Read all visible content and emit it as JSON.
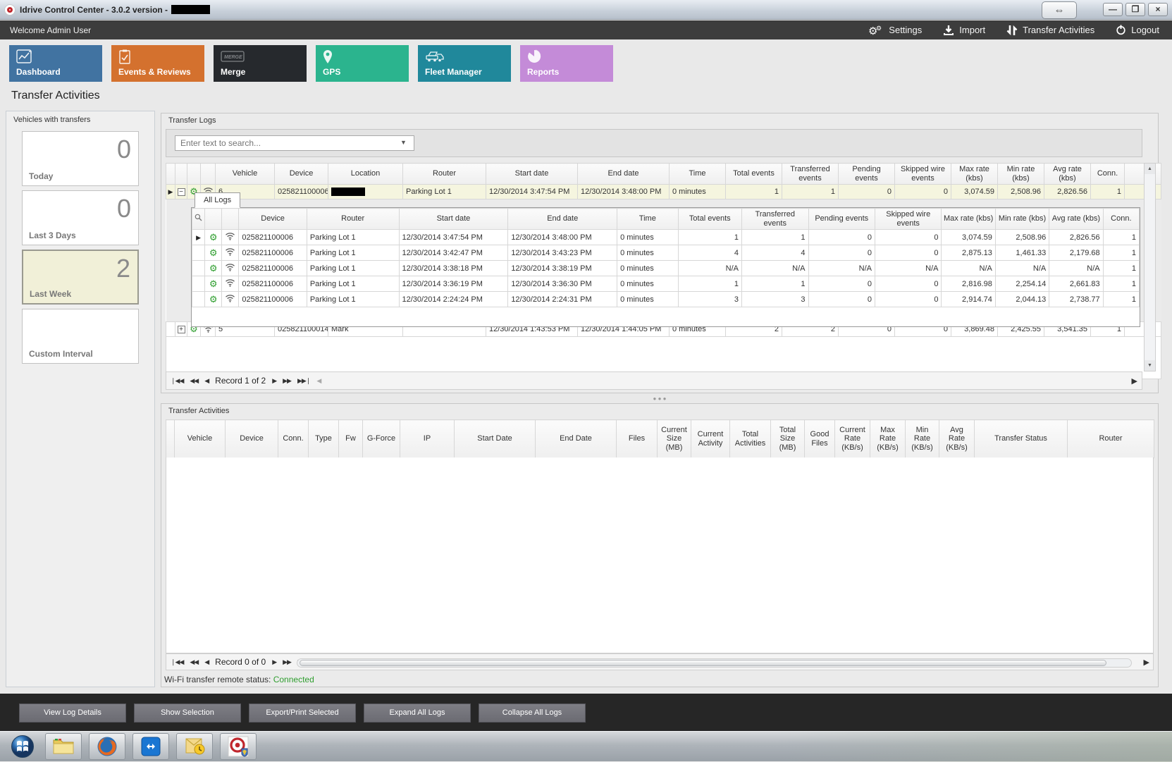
{
  "window": {
    "title": "Idrive Control Center - 3.0.2 version -",
    "title_redacted": true,
    "controls": {
      "resize": "⇔",
      "minimize": "—",
      "maximize": "❐",
      "close": "×"
    }
  },
  "header": {
    "welcome": "Welcome Admin User",
    "actions": [
      {
        "label": "Settings",
        "icon": "gears-icon"
      },
      {
        "label": "Import",
        "icon": "download-icon"
      },
      {
        "label": "Transfer Activities",
        "icon": "transfer-arrows-icon"
      },
      {
        "label": "Logout",
        "icon": "power-icon"
      }
    ]
  },
  "nav_tabs": [
    {
      "label": "Dashboard",
      "color": "#4173a1",
      "icon": "chart-icon"
    },
    {
      "label": "Events & Reviews",
      "color": "#d4712e",
      "icon": "clipboard-check-icon"
    },
    {
      "label": "Merge",
      "color": "#26292d",
      "icon": "merge-icon"
    },
    {
      "label": "GPS",
      "color": "#2bb48e",
      "icon": "map-pin-icon"
    },
    {
      "label": "Fleet Manager",
      "color": "#20889b",
      "icon": "fleet-icon"
    },
    {
      "label": "Reports",
      "color": "#c48bd8",
      "icon": "pie-chart-icon"
    }
  ],
  "page_title": "Transfer Activities",
  "sidebar": {
    "title": "Vehicles with transfers",
    "cards": [
      {
        "label": "Today",
        "value": "0",
        "active": false
      },
      {
        "label": "Last 3 Days",
        "value": "0",
        "active": false
      },
      {
        "label": "Last Week",
        "value": "2",
        "active": true
      },
      {
        "label": "Custom Interval",
        "value": "",
        "active": false
      }
    ]
  },
  "transfer_logs": {
    "title": "Transfer Logs",
    "search_placeholder": "Enter text to search...",
    "columns": [
      "Vehicle",
      "Device",
      "Location",
      "Router",
      "Start date",
      "End date",
      "Time",
      "Total events",
      "Transferred events",
      "Pending events",
      "Skipped wire events",
      "Max rate (kbs)",
      "Min rate (kbs)",
      "Avg rate (kbs)",
      "Conn."
    ],
    "rows": [
      {
        "expanded": true,
        "highlight": true,
        "arrow": true,
        "vehicle": "6",
        "device": "025821100006",
        "location": "",
        "location_redacted": true,
        "router": "Parking Lot 1",
        "start": "12/30/2014 3:47:54 PM",
        "end": "12/30/2014 3:48:00 PM",
        "time": "0 minutes",
        "total": "1",
        "transferred": "1",
        "pending": "0",
        "skipped": "0",
        "max": "3,074.59",
        "min": "2,508.96",
        "avg": "2,826.56",
        "conn": "1"
      },
      {
        "expanded": false,
        "highlight": false,
        "arrow": false,
        "vehicle": "5",
        "device": "025821100014",
        "location": "Mark",
        "location_redacted": false,
        "router": "",
        "start": "12/30/2014 1:43:53 PM",
        "end": "12/30/2014 1:44:05 PM",
        "time": "0 minutes",
        "total": "2",
        "transferred": "2",
        "pending": "0",
        "skipped": "0",
        "max": "3,869.48",
        "min": "2,425.55",
        "avg": "3,541.35",
        "conn": "1"
      }
    ],
    "sublog": {
      "tab": "All Logs",
      "columns": [
        "Device",
        "Router",
        "Start date",
        "End date",
        "Time",
        "Total events",
        "Transferred events",
        "Pending events",
        "Skipped wire events",
        "Max rate (kbs)",
        "Min rate (kbs)",
        "Avg rate (kbs)",
        "Conn."
      ],
      "rows": [
        {
          "arrow": true,
          "device": "025821100006",
          "router": "Parking Lot 1",
          "start": "12/30/2014 3:47:54 PM",
          "end": "12/30/2014 3:48:00 PM",
          "time": "0 minutes",
          "total": "1",
          "transferred": "1",
          "pending": "0",
          "skipped": "0",
          "max": "3,074.59",
          "min": "2,508.96",
          "avg": "2,826.56",
          "conn": "1"
        },
        {
          "arrow": false,
          "device": "025821100006",
          "router": "Parking Lot 1",
          "start": "12/30/2014 3:42:47 PM",
          "end": "12/30/2014 3:43:23 PM",
          "time": "0 minutes",
          "total": "4",
          "transferred": "4",
          "pending": "0",
          "skipped": "0",
          "max": "2,875.13",
          "min": "1,461.33",
          "avg": "2,179.68",
          "conn": "1"
        },
        {
          "arrow": false,
          "device": "025821100006",
          "router": "Parking Lot 1",
          "start": "12/30/2014 3:38:18 PM",
          "end": "12/30/2014 3:38:19 PM",
          "time": "0 minutes",
          "total": "N/A",
          "transferred": "N/A",
          "pending": "N/A",
          "skipped": "N/A",
          "max": "N/A",
          "min": "N/A",
          "avg": "N/A",
          "conn": "1"
        },
        {
          "arrow": false,
          "device": "025821100006",
          "router": "Parking Lot 1",
          "start": "12/30/2014 3:36:19 PM",
          "end": "12/30/2014 3:36:30 PM",
          "time": "0 minutes",
          "total": "1",
          "transferred": "1",
          "pending": "0",
          "skipped": "0",
          "max": "2,816.98",
          "min": "2,254.14",
          "avg": "2,661.83",
          "conn": "1"
        },
        {
          "arrow": false,
          "device": "025821100006",
          "router": "Parking Lot 1",
          "start": "12/30/2014 2:24:24 PM",
          "end": "12/30/2014 2:24:31 PM",
          "time": "0 minutes",
          "total": "3",
          "transferred": "3",
          "pending": "0",
          "skipped": "0",
          "max": "2,914.74",
          "min": "2,044.13",
          "avg": "2,738.77",
          "conn": "1"
        }
      ]
    },
    "pager": "Record 1 of 2"
  },
  "transfer_activities": {
    "title": "Transfer Activities",
    "columns": [
      "Vehicle",
      "Device",
      "Conn.",
      "Type",
      "Fw",
      "G-Force",
      "IP",
      "Start Date",
      "End Date",
      "Files",
      "Current Size (MB)",
      "Current Activity",
      "Total Activities",
      "Total Size (MB)",
      "Good Files",
      "Current Rate (KB/s)",
      "Max Rate (KB/s)",
      "Min Rate (KB/s)",
      "Avg Rate (KB/s)",
      "Transfer Status",
      "Router"
    ],
    "rows": [],
    "pager": "Record 0 of 0"
  },
  "status_bar": {
    "label": "Wi-Fi transfer remote status:",
    "value": "Connected",
    "value_color": "#2f9e2f"
  },
  "footer_buttons": [
    "View Log Details",
    "Show Selection",
    "Export/Print Selected",
    "Expand All Logs",
    "Collapse All Logs"
  ],
  "taskbar": {
    "items": [
      {
        "name": "start-button",
        "icon": "windows-start-icon"
      },
      {
        "name": "explorer",
        "icon": "folder-icon"
      },
      {
        "name": "firefox",
        "icon": "firefox-icon"
      },
      {
        "name": "teamviewer",
        "icon": "teamviewer-icon"
      },
      {
        "name": "outlook",
        "icon": "outlook-icon"
      },
      {
        "name": "idrive-app",
        "icon": "idrive-icon"
      }
    ]
  }
}
